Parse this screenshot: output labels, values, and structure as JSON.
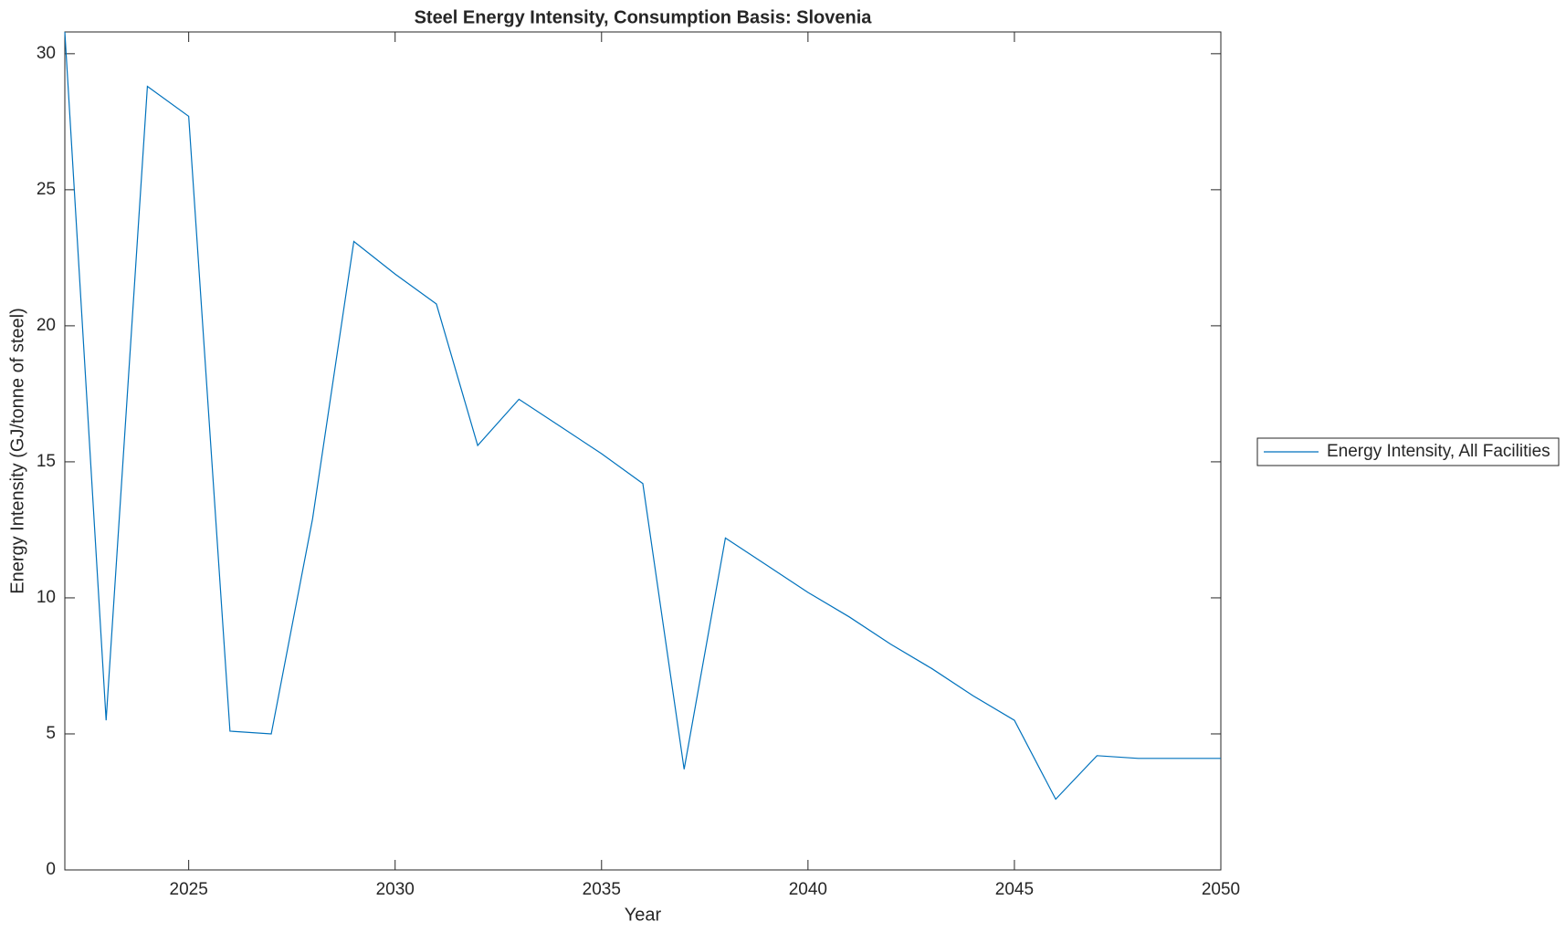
{
  "chart_data": {
    "type": "line",
    "title": "Steel Energy Intensity, Consumption Basis: Slovenia",
    "xlabel": "Year",
    "ylabel": "Energy Intensity (GJ/tonne of steel)",
    "x": [
      2022,
      2023,
      2024,
      2025,
      2026,
      2027,
      2028,
      2029,
      2030,
      2031,
      2032,
      2033,
      2034,
      2035,
      2036,
      2037,
      2038,
      2039,
      2040,
      2041,
      2042,
      2043,
      2044,
      2045,
      2046,
      2047,
      2048,
      2049,
      2050
    ],
    "series": [
      {
        "name": "Energy Intensity, All Facilities",
        "color": "#0072bd",
        "values": [
          30.8,
          5.5,
          28.8,
          27.7,
          5.1,
          5.0,
          12.9,
          23.1,
          21.9,
          20.8,
          15.6,
          17.3,
          16.3,
          15.3,
          14.2,
          3.7,
          12.2,
          11.2,
          10.2,
          9.3,
          8.3,
          7.4,
          6.4,
          5.5,
          2.6,
          4.2,
          4.1,
          4.1,
          4.1
        ]
      }
    ],
    "xlim": [
      2022,
      2050
    ],
    "xticks": [
      2025,
      2030,
      2035,
      2040,
      2045,
      2050
    ],
    "ylim": [
      0,
      30.8
    ],
    "yticks": [
      0,
      5,
      10,
      15,
      20,
      25,
      30
    ],
    "grid": false,
    "legend": "outside-right"
  }
}
